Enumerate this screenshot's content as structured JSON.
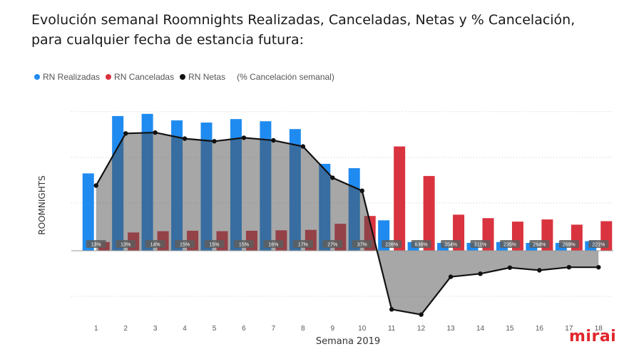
{
  "title": "Evolución semanal Roomnights Realizadas, Canceladas, Netas y % Cancelación, para cualquier fecha de estancia futura:",
  "brand": "mirai",
  "chart_data": {
    "type": "bar",
    "xlabel": "Semana 2019",
    "ylabel": "ROOMNIGHTS",
    "legend_note": "(% Cancelación semanal)",
    "legend_position": "top-left",
    "grid": true,
    "ylim": [
      -160,
      320
    ],
    "categories": [
      "1",
      "2",
      "3",
      "4",
      "5",
      "6",
      "7",
      "8",
      "9",
      "10",
      "11",
      "12",
      "13",
      "14",
      "15",
      "16",
      "17",
      "18"
    ],
    "series": [
      {
        "name": "RN Realizadas",
        "type": "bar",
        "color": "#1f8bf0",
        "values": [
          178,
          310,
          315,
          300,
          295,
          303,
          298,
          280,
          200,
          190,
          70,
          20,
          18,
          18,
          20,
          18,
          18,
          22
        ]
      },
      {
        "name": "RN Canceladas",
        "type": "bar",
        "color": "#d9333f",
        "values": [
          20,
          42,
          45,
          46,
          45,
          46,
          47,
          48,
          62,
          80,
          240,
          172,
          83,
          75,
          67,
          72,
          60,
          68
        ]
      },
      {
        "name": "RN Netas",
        "type": "line",
        "color": "#111111",
        "values": [
          150,
          270,
          272,
          258,
          252,
          260,
          254,
          240,
          168,
          138,
          -135,
          -147,
          -60,
          -53,
          -39,
          -45,
          -38,
          -38
        ]
      }
    ],
    "data_labels": [
      "13%",
      "13%",
      "14%",
      "15%",
      "15%",
      "15%",
      "16%",
      "17%",
      "27%",
      "37%",
      "226%",
      "636%",
      "354%",
      "311%",
      "235%",
      "264%",
      "269%",
      "221%"
    ]
  }
}
